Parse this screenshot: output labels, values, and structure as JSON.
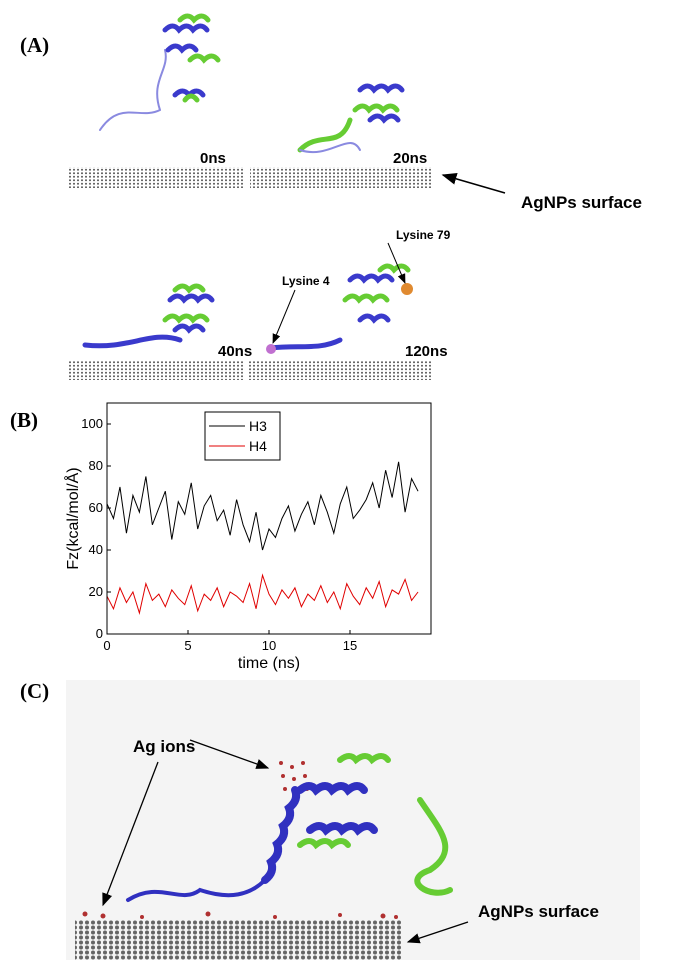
{
  "panel_labels": [
    "(A)",
    "(B)",
    "(C)"
  ],
  "panel_a": {
    "times": [
      "0ns",
      "20ns",
      "40ns",
      "120ns"
    ],
    "surface_label": "AgNPs surface",
    "residues": [
      "Lysine 79",
      "Lysine 4"
    ]
  },
  "chart_data": {
    "type": "line",
    "x": [
      0,
      0.4,
      0.8,
      1.2,
      1.6,
      2,
      2.4,
      2.8,
      3.2,
      3.6,
      4,
      4.4,
      4.8,
      5.2,
      5.6,
      6,
      6.4,
      6.8,
      7.2,
      7.6,
      8,
      8.4,
      8.8,
      9.2,
      9.6,
      10,
      10.4,
      10.8,
      11.2,
      11.6,
      12,
      12.4,
      12.8,
      13.2,
      13.6,
      14,
      14.4,
      14.8,
      15.2,
      15.6,
      16,
      16.4,
      16.8,
      17.2,
      17.6,
      18,
      18.4,
      18.8,
      19.2
    ],
    "series": [
      {
        "name": "H3",
        "color": "#000000",
        "values": [
          62,
          55,
          70,
          48,
          66,
          58,
          75,
          52,
          60,
          68,
          45,
          63,
          57,
          72,
          50,
          61,
          66,
          54,
          59,
          47,
          64,
          52,
          44,
          58,
          40,
          50,
          46,
          55,
          61,
          49,
          57,
          63,
          52,
          66,
          58,
          48,
          62,
          70,
          55,
          59,
          64,
          72,
          60,
          78,
          65,
          82,
          58,
          74,
          68
        ]
      },
      {
        "name": "H4",
        "color": "#e00000",
        "values": [
          18,
          12,
          22,
          15,
          20,
          10,
          24,
          16,
          19,
          13,
          21,
          17,
          14,
          23,
          11,
          19,
          16,
          22,
          13,
          20,
          18,
          15,
          24,
          12,
          28,
          19,
          14,
          21,
          17,
          22,
          13,
          19,
          16,
          23,
          15,
          20,
          12,
          24,
          18,
          14,
          22,
          17,
          25,
          13,
          21,
          19,
          26,
          16,
          20
        ]
      }
    ],
    "xlim": [
      0,
      20
    ],
    "ylim": [
      0,
      110
    ],
    "xticks": [
      0,
      5,
      10,
      15
    ],
    "yticks": [
      0,
      20,
      40,
      60,
      80,
      100
    ],
    "x_label": "time (ns)",
    "y_label": "Fz(kcal/mol/Å)",
    "legend": "top"
  },
  "panel_c": {
    "ion_label": "Ag ions",
    "surface_label": "AgNPs surface"
  }
}
